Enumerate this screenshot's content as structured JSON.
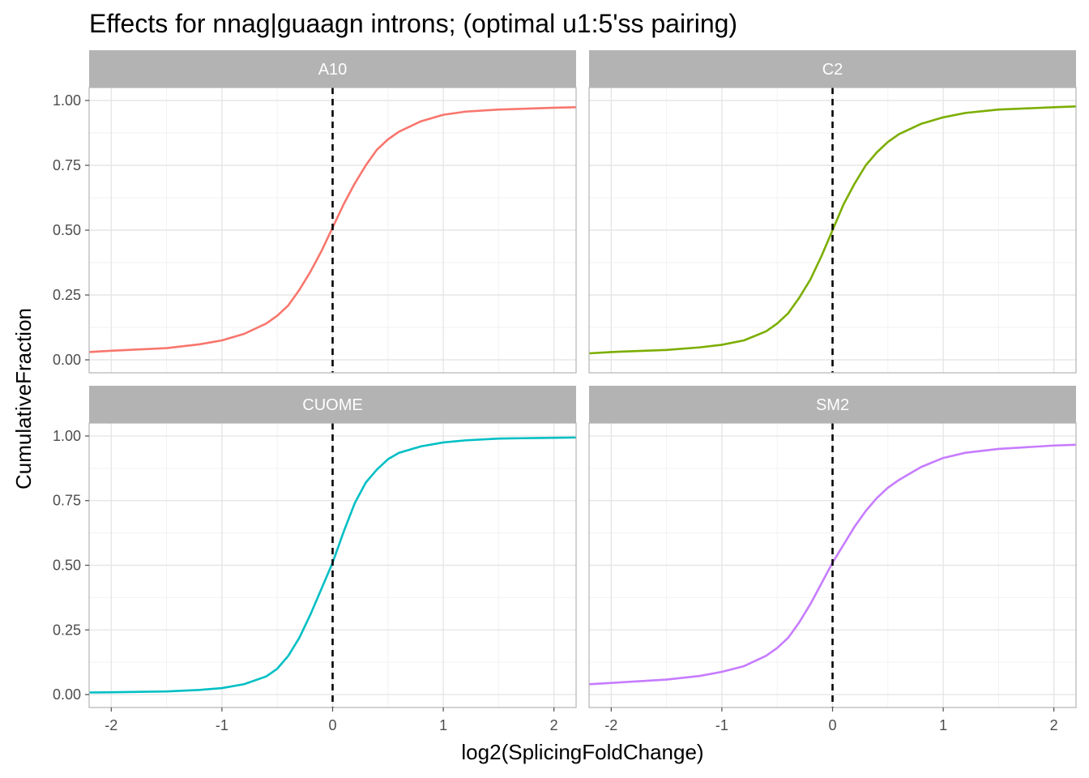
{
  "chart_data": {
    "type": "line",
    "title": "Effects for nnag|guaagn introns; (optimal u1:5'ss pairing)",
    "xlabel": "log2(SplicingFoldChange)",
    "ylabel": "CumulativeFraction",
    "xlim": [
      -2.2,
      2.2
    ],
    "ylim": [
      -0.05,
      1.05
    ],
    "xticks": [
      -2,
      -1,
      0,
      1,
      2
    ],
    "xtick_labels": [
      "-2",
      "-1",
      "0",
      "1",
      "2"
    ],
    "yticks": [
      0,
      0.25,
      0.5,
      0.75,
      1
    ],
    "ytick_labels": [
      "0.00",
      "0.25",
      "0.50",
      "0.75",
      "1.00"
    ],
    "reference_line": {
      "x": 0,
      "style": "dashed",
      "color": "#000000"
    },
    "grid": true,
    "legend": "none",
    "panels": [
      {
        "name": "A10",
        "color": "#F8766D",
        "x": [
          -2.2,
          -2.0,
          -1.5,
          -1.2,
          -1.0,
          -0.8,
          -0.6,
          -0.5,
          -0.4,
          -0.3,
          -0.2,
          -0.1,
          0,
          0.1,
          0.2,
          0.3,
          0.4,
          0.5,
          0.6,
          0.8,
          1.0,
          1.2,
          1.5,
          2.0,
          2.2
        ],
        "y": [
          0.03,
          0.035,
          0.045,
          0.06,
          0.075,
          0.1,
          0.14,
          0.17,
          0.21,
          0.27,
          0.34,
          0.42,
          0.51,
          0.6,
          0.68,
          0.75,
          0.81,
          0.85,
          0.88,
          0.92,
          0.945,
          0.957,
          0.965,
          0.972,
          0.974
        ]
      },
      {
        "name": "C2",
        "color": "#7CAE00",
        "x": [
          -2.2,
          -2.0,
          -1.5,
          -1.2,
          -1.0,
          -0.8,
          -0.6,
          -0.5,
          -0.4,
          -0.3,
          -0.2,
          -0.1,
          0,
          0.1,
          0.2,
          0.3,
          0.4,
          0.5,
          0.6,
          0.8,
          1.0,
          1.2,
          1.5,
          2.0,
          2.2
        ],
        "y": [
          0.025,
          0.03,
          0.038,
          0.048,
          0.058,
          0.075,
          0.11,
          0.14,
          0.18,
          0.24,
          0.31,
          0.4,
          0.5,
          0.6,
          0.68,
          0.75,
          0.8,
          0.84,
          0.87,
          0.91,
          0.935,
          0.952,
          0.965,
          0.974,
          0.977
        ]
      },
      {
        "name": "CUOME",
        "color": "#00BFC4",
        "x": [
          -2.2,
          -2.0,
          -1.5,
          -1.2,
          -1.0,
          -0.8,
          -0.6,
          -0.5,
          -0.4,
          -0.3,
          -0.2,
          -0.1,
          0,
          0.1,
          0.2,
          0.3,
          0.4,
          0.5,
          0.6,
          0.8,
          1.0,
          1.2,
          1.5,
          2.0,
          2.2
        ],
        "y": [
          0.008,
          0.009,
          0.012,
          0.018,
          0.025,
          0.04,
          0.07,
          0.1,
          0.15,
          0.22,
          0.31,
          0.41,
          0.51,
          0.63,
          0.74,
          0.82,
          0.87,
          0.91,
          0.935,
          0.96,
          0.975,
          0.983,
          0.99,
          0.993,
          0.994
        ]
      },
      {
        "name": "SM2",
        "color": "#C77CFF",
        "x": [
          -2.2,
          -2.0,
          -1.5,
          -1.2,
          -1.0,
          -0.8,
          -0.6,
          -0.5,
          -0.4,
          -0.3,
          -0.2,
          -0.1,
          0,
          0.1,
          0.2,
          0.3,
          0.4,
          0.5,
          0.6,
          0.8,
          1.0,
          1.2,
          1.5,
          2.0,
          2.2
        ],
        "y": [
          0.04,
          0.045,
          0.058,
          0.072,
          0.088,
          0.11,
          0.15,
          0.18,
          0.22,
          0.28,
          0.35,
          0.43,
          0.51,
          0.58,
          0.65,
          0.71,
          0.76,
          0.8,
          0.83,
          0.88,
          0.915,
          0.935,
          0.95,
          0.963,
          0.966
        ]
      }
    ]
  }
}
